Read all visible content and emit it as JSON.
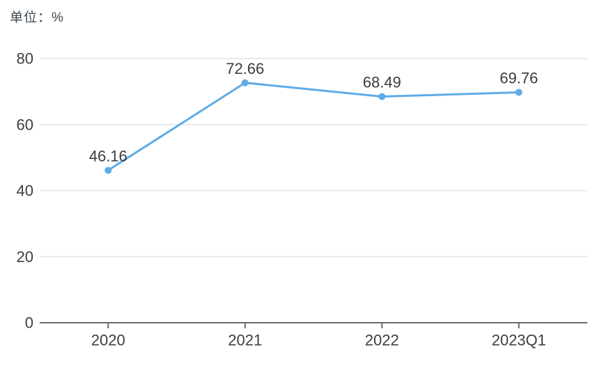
{
  "unit_label": "单位：%",
  "chart_data": {
    "type": "line",
    "title": "",
    "xlabel": "",
    "ylabel": "单位：%",
    "categories": [
      "2020",
      "2021",
      "2022",
      "2023Q1"
    ],
    "values": [
      46.16,
      72.66,
      68.49,
      69.76
    ],
    "data_labels": [
      "46.16",
      "72.66",
      "68.49",
      "69.76"
    ],
    "ylim": [
      0,
      80
    ],
    "yticks": [
      0,
      20,
      40,
      60,
      80
    ],
    "grid": true,
    "legend_position": "none",
    "colors": {
      "line": "#5FACE6",
      "point": "#5FACE6",
      "data_label": "#3c3c3c",
      "tick_label": "#3f3f3f",
      "grid_line": "#e8e8e8",
      "axis_line": "#6b6b6b"
    }
  }
}
